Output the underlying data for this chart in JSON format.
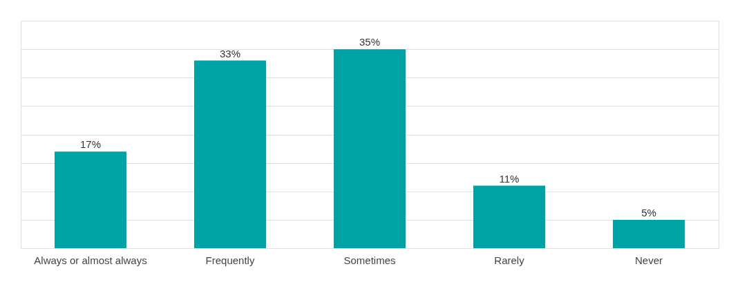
{
  "chart_data": {
    "type": "bar",
    "categories": [
      "Always or almost always",
      "Frequently",
      "Sometimes",
      "Rarely",
      "Never"
    ],
    "values": [
      17,
      33,
      35,
      11,
      5
    ],
    "value_labels": [
      "17%",
      "33%",
      "35%",
      "11%",
      "5%"
    ],
    "color": "#00a3a3",
    "ylim": [
      0,
      40
    ],
    "yticks": [
      0,
      5,
      10,
      15,
      20,
      25,
      30,
      35,
      40
    ],
    "grid": "y",
    "tick_labels": "x"
  }
}
